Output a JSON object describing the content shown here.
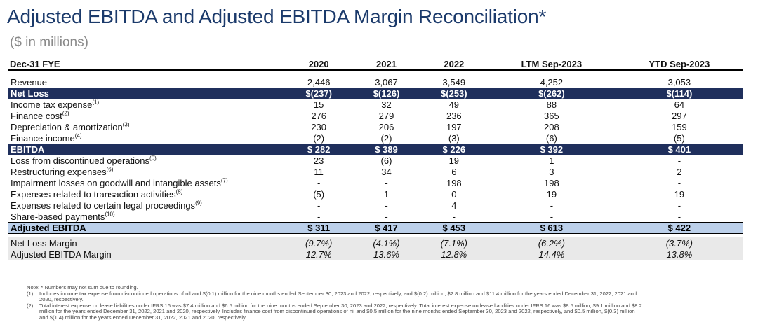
{
  "title": "Adjusted EBITDA and Adjusted EBITDA Margin Reconciliation*",
  "subtitle": "($ in millions)",
  "table": {
    "header": {
      "label": "Dec-31 FYE",
      "columns": [
        "2020",
        "2021",
        "2022",
        "LTM Sep-2023",
        "YTD Sep-2023"
      ]
    },
    "rows": [
      {
        "style": "row",
        "label": "Revenue",
        "sup": "",
        "values": [
          "2,446",
          "3,067",
          "3,549",
          "4,252",
          "3,053"
        ]
      },
      {
        "style": "dark",
        "label": "Net Loss",
        "sup": "",
        "values": [
          "$(237)",
          "$(126)",
          "$(253)",
          "$(262)",
          "$(114)"
        ]
      },
      {
        "style": "row",
        "label": "Income tax expense",
        "sup": "(1)",
        "values": [
          "15",
          "32",
          "49",
          "88",
          "64"
        ]
      },
      {
        "style": "row",
        "label": "Finance cost",
        "sup": "(2)",
        "values": [
          "276",
          "279",
          "236",
          "365",
          "297"
        ]
      },
      {
        "style": "row",
        "label": "Depreciation & amortization",
        "sup": "(3)",
        "values": [
          "230",
          "206",
          "197",
          "208",
          "159"
        ]
      },
      {
        "style": "row",
        "label": "Finance income",
        "sup": "(4)",
        "values": [
          "(2)",
          "(2)",
          "(3)",
          "(6)",
          "(5)"
        ]
      },
      {
        "style": "dark",
        "label": "EBITDA",
        "sup": "",
        "values": [
          "$ 282",
          "$ 389",
          "$ 226",
          "$ 392",
          "$ 401"
        ]
      },
      {
        "style": "row",
        "label": "Loss from discontinued operations",
        "sup": "(5)",
        "values": [
          "23",
          "(6)",
          "19",
          "1",
          "-"
        ]
      },
      {
        "style": "row",
        "label": "Restructuring expenses",
        "sup": "(6)",
        "values": [
          "11",
          "34",
          "6",
          "3",
          "2"
        ]
      },
      {
        "style": "row",
        "label": "Impairment losses on goodwill and intangible assets",
        "sup": "(7)",
        "values": [
          "-",
          "-",
          "198",
          "198",
          "-"
        ]
      },
      {
        "style": "row",
        "label": "Expenses related to transaction activities",
        "sup": "(8)",
        "values": [
          "(5)",
          "1",
          "0",
          "19",
          "19"
        ]
      },
      {
        "style": "row",
        "label": "Expenses related to certain legal proceedings",
        "sup": "(9)",
        "values": [
          "-",
          "-",
          "4",
          "-",
          "-"
        ]
      },
      {
        "style": "row",
        "label": "Share-based payments",
        "sup": "(10)",
        "values": [
          "-",
          "-",
          "-",
          "-",
          "-"
        ]
      },
      {
        "style": "light",
        "label": "Adjusted EBITDA",
        "sup": "",
        "values": [
          "$ 311",
          "$ 417",
          "$ 453",
          "$ 613",
          "$ 422"
        ]
      },
      {
        "style": "margin margin-first",
        "label": "Net Loss Margin",
        "sup": "",
        "values": [
          "(9.7%)",
          "(4.1%)",
          "(7.1%)",
          "(6.2%)",
          "(3.7%)"
        ]
      },
      {
        "style": "margin margin-last",
        "label": "Adjusted EBITDA Margin",
        "sup": "",
        "values": [
          "12.7%",
          "13.6%",
          "12.8%",
          "14.4%",
          "13.8%"
        ]
      }
    ]
  },
  "notes": {
    "intro": "Note: * Numbers may not sum due to rounding.",
    "items": [
      {
        "idx": "(1)",
        "text": "Includes income tax expense from discontinued operations of nil and $(0.1) million for the nine months ended September 30, 2023 and 2022, respectively, and $(0.2) million, $2.8 million and $11.4 million for the years ended December 31, 2022, 2021 and 2020, respectively."
      },
      {
        "idx": "(2)",
        "text": "Total interest expense on lease liabilities under IFRS 16 was $7.4 million and $6.5 million for the nine months ended September 30, 2023 and 2022, respectively. Total interest expense on lease liabilities under IFRS 16 was $8.5 million, $9.1 million and $8.2 million for the years ended December 31, 2022, 2021 and 2020, respectively. Includes finance cost from discontinued operations of nil and $0.5 million for the nine months ended September 30, 2023 and 2022, respectively, and $0.5 million, $(0.3) million and $(1.4) million for the years ended December 31, 2022, 2021 and 2020, respectively."
      }
    ]
  },
  "colors": {
    "title": "#1b3a6b",
    "dark_row": "#1f2f5c",
    "light_row": "#bcd0ea",
    "margin_bg": "#e9e9e9"
  }
}
